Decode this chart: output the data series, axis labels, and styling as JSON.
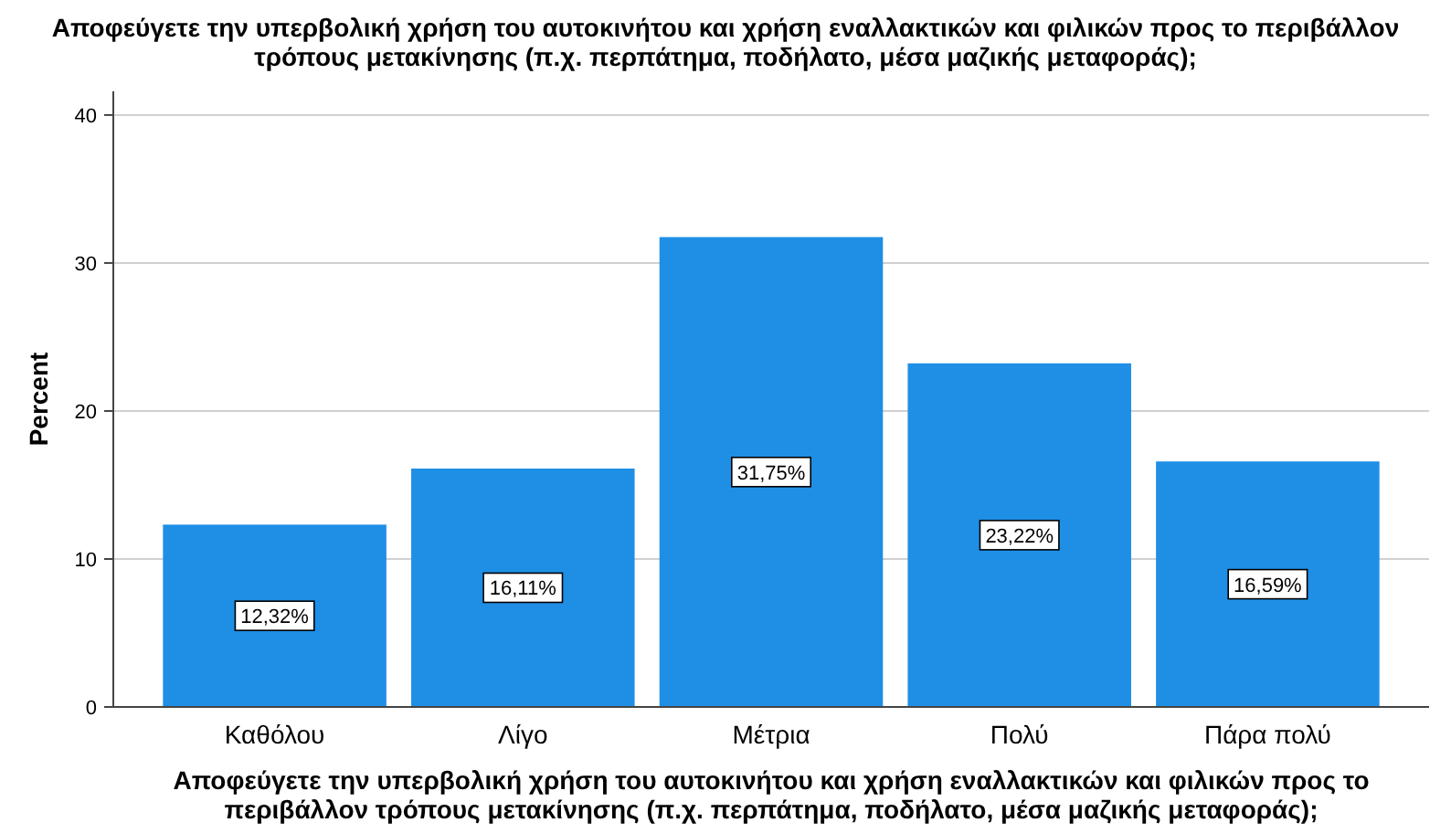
{
  "chart_data": {
    "type": "bar",
    "title": "Αποφεύγετε την υπερβολική χρήση του αυτοκινήτου και χρήση εναλλακτικών και φιλικών προς το περιβάλλον τρόπους μετακίνησης (π.χ. περπάτημα, ποδήλατο, μέσα μαζικής μεταφοράς);",
    "xlabel": "Αποφεύγετε την υπερβολική χρήση του αυτοκινήτου και χρήση εναλλακτικών και φιλικών προς το περιβάλλον τρόπους μετακίνησης (π.χ. περπάτημα, ποδήλατο, μέσα μαζικής μεταφοράς);",
    "ylabel": "Percent",
    "categories": [
      "Καθόλου",
      "Λίγο",
      "Μέτρια",
      "Πολύ",
      "Πάρα πολύ"
    ],
    "values": [
      12.32,
      16.11,
      31.75,
      23.22,
      16.59
    ],
    "value_labels": [
      "12,32%",
      "16,11%",
      "31,75%",
      "23,22%",
      "16,59%"
    ],
    "color": "#1f8fe6",
    "ylim": [
      0,
      41.6
    ],
    "yticks": [
      0,
      10,
      20,
      30,
      40
    ],
    "grid": "y"
  }
}
